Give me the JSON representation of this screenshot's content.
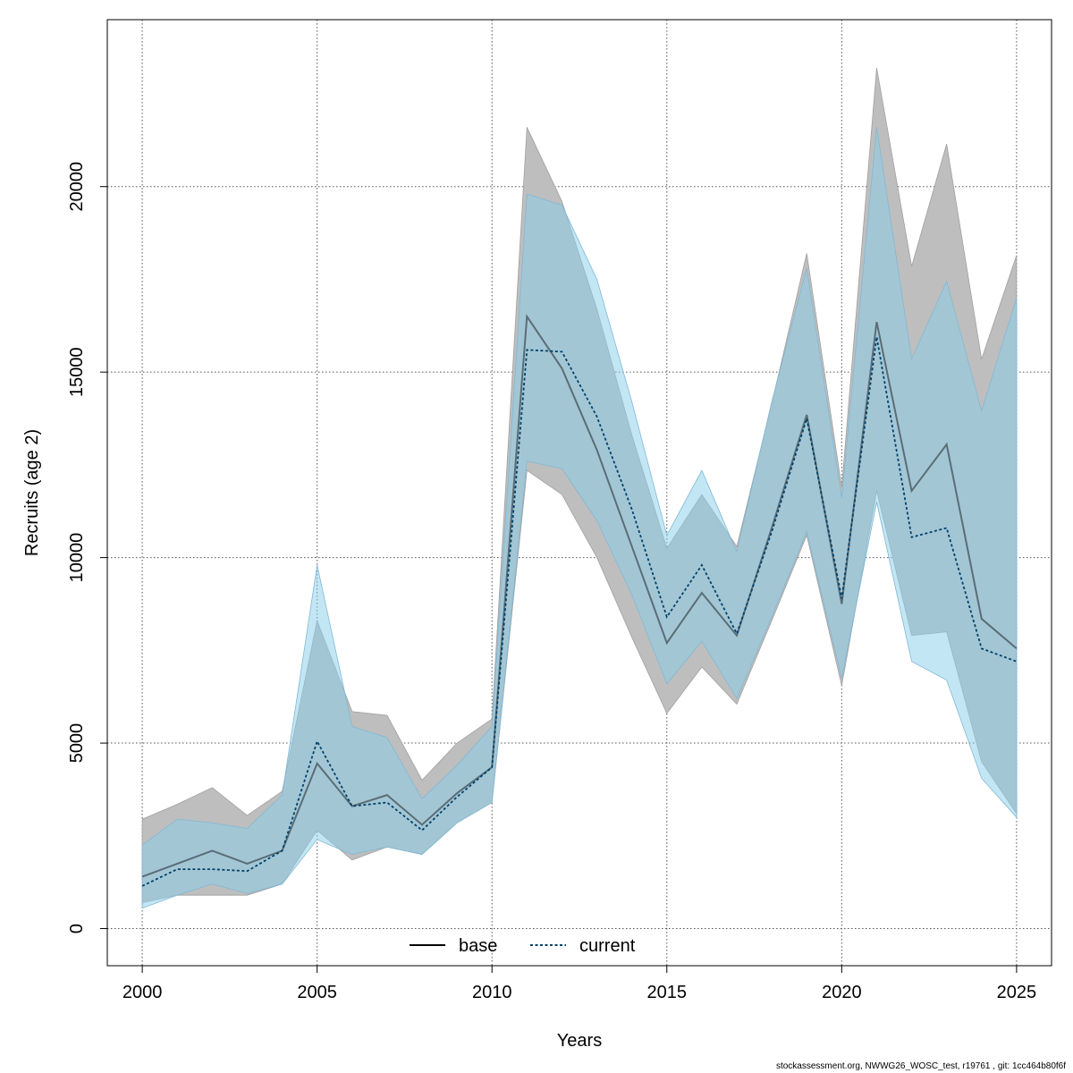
{
  "chart_data": {
    "type": "line",
    "title": "",
    "xlabel": "Years",
    "ylabel": "Recruits (age 2)",
    "xlim": [
      1999,
      2026
    ],
    "ylim": [
      -1000,
      24500
    ],
    "grid": true,
    "xticks": [
      2000,
      2005,
      2010,
      2015,
      2020,
      2025
    ],
    "yticks": [
      0,
      5000,
      10000,
      15000,
      20000
    ],
    "legend_position": "bottom-center",
    "x": [
      2000,
      2001,
      2002,
      2003,
      2004,
      2005,
      2006,
      2007,
      2008,
      2009,
      2010,
      2011,
      2012,
      2013,
      2014,
      2015,
      2016,
      2017,
      2018,
      2019,
      2020,
      2021,
      2022,
      2023,
      2024,
      2025
    ],
    "series": [
      {
        "name": "base",
        "line_style": "solid",
        "color": "#000000",
        "band_color": "#bebebe",
        "values": [
          1400,
          1750,
          2100,
          1750,
          2100,
          4450,
          3300,
          3600,
          2800,
          3650,
          4350,
          16500,
          15100,
          12900,
          10300,
          7700,
          9050,
          7900,
          10800,
          13850,
          8750,
          16350,
          11800,
          13050,
          8350,
          7550
        ],
        "lower": [
          700,
          900,
          900,
          900,
          1200,
          2650,
          1850,
          2200,
          2000,
          2850,
          3400,
          12350,
          11700,
          10000,
          7850,
          5800,
          7050,
          6050,
          8300,
          10600,
          6550,
          11800,
          7900,
          8000,
          4500,
          3100
        ],
        "upper": [
          2950,
          3350,
          3800,
          3050,
          3700,
          8300,
          5850,
          5750,
          4000,
          5000,
          5650,
          21600,
          19600,
          16700,
          13300,
          10250,
          11700,
          10300,
          14150,
          18200,
          11900,
          23200,
          17850,
          21150,
          15350,
          18150
        ]
      },
      {
        "name": "current",
        "line_style": "dotted",
        "color": "#00426a",
        "band_color": "#87ceeb",
        "values": [
          1150,
          1600,
          1600,
          1550,
          2100,
          5050,
          3300,
          3400,
          2650,
          3550,
          4350,
          15600,
          15550,
          13800,
          11300,
          8400,
          9800,
          7950,
          10700,
          13750,
          8900,
          15950,
          10550,
          10800,
          7550,
          7200
        ],
        "lower": [
          550,
          900,
          1200,
          950,
          1200,
          2400,
          2000,
          2200,
          2000,
          2850,
          3400,
          12600,
          12400,
          11000,
          9000,
          6600,
          7750,
          6200,
          8400,
          10700,
          6750,
          11500,
          7200,
          6700,
          4050,
          3000
        ],
        "upper": [
          2250,
          2950,
          2850,
          2700,
          3600,
          9800,
          5450,
          5150,
          3500,
          4400,
          5450,
          19800,
          19500,
          17500,
          14200,
          10600,
          12350,
          10150,
          14200,
          17800,
          11600,
          21600,
          15350,
          17450,
          13950,
          17000
        ]
      }
    ]
  },
  "footer": "stockassessment.org, NWWG26_WOSC_test, r19761 , git: 1cc464b80f6f"
}
